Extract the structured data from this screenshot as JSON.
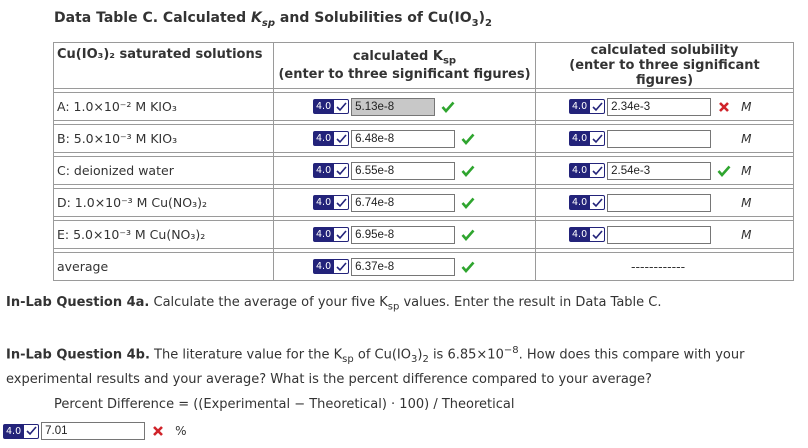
{
  "title": {
    "prefix": "Data Table C. Calculated ",
    "k": "K",
    "sub": "sp",
    "suffix": " and Solubilities of Cu(IO",
    "sub2": "3",
    "end": ")",
    "sub3": "2"
  },
  "table": {
    "headers": {
      "col1": "Cu(IO₃)₂ saturated solutions",
      "col2_line1": "calculated K",
      "col2_sub": "sp",
      "col2_line2": "(enter to three significant figures)",
      "col3_line1": "calculated solubility",
      "col3_line2": "(enter to three significant figures)"
    },
    "rows": [
      {
        "label": "A: 1.0×10⁻² M KIO₃",
        "ksp": "5.13e-8",
        "ksp_selected": true,
        "ksp_status": "correct",
        "sol": "2.34e-3",
        "sol_status": "incorrect",
        "unit": "M"
      },
      {
        "label": "B: 5.0×10⁻³ M KIO₃",
        "ksp": "6.48e-8",
        "ksp_status": "correct",
        "sol": "",
        "sol_status": "none",
        "unit": "M"
      },
      {
        "label": "C: deionized water",
        "ksp": "6.55e-8",
        "ksp_status": "correct",
        "sol": "2.54e-3",
        "sol_status": "correct",
        "unit": "M"
      },
      {
        "label": "D: 1.0×10⁻³ M Cu(NO₃)₂",
        "ksp": "6.74e-8",
        "ksp_status": "correct",
        "sol": "",
        "sol_status": "none",
        "unit": "M"
      },
      {
        "label": "E: 5.0×10⁻³ M Cu(NO₃)₂",
        "ksp": "6.95e-8",
        "ksp_status": "correct",
        "sol": "",
        "sol_status": "none",
        "unit": "M"
      },
      {
        "label": "average",
        "ksp": "6.37e-8",
        "ksp_status": "correct",
        "sol_dashes": "------------"
      }
    ]
  },
  "badge_value": "4.0",
  "q4a": {
    "bold": "In-Lab Question 4a.",
    "text": " Calculate the average of your five K",
    "sub": "sp",
    "text2": " values. Enter the result in Data Table C."
  },
  "q4b": {
    "bold": "In-Lab Question 4b.",
    "t1": " The literature value for the K",
    "sub": "sp",
    "t2": " of Cu(IO",
    "sub2": "3",
    "t3": ")",
    "sub3": "2",
    "t4": " is 6.85×10",
    "sup": "−8",
    "t5": ". How does this compare with your",
    "line2": "experimental results and your average? What is the percent difference compared to your average?"
  },
  "formula": "Percent Difference = ((Experimental − Theoretical) · 100) / Theoretical",
  "answer": {
    "value": "7.01",
    "status": "incorrect",
    "unit": "%"
  },
  "colors": {
    "correct": "#2fa52f",
    "incorrect": "#d0232a",
    "badge": "#23237a"
  }
}
